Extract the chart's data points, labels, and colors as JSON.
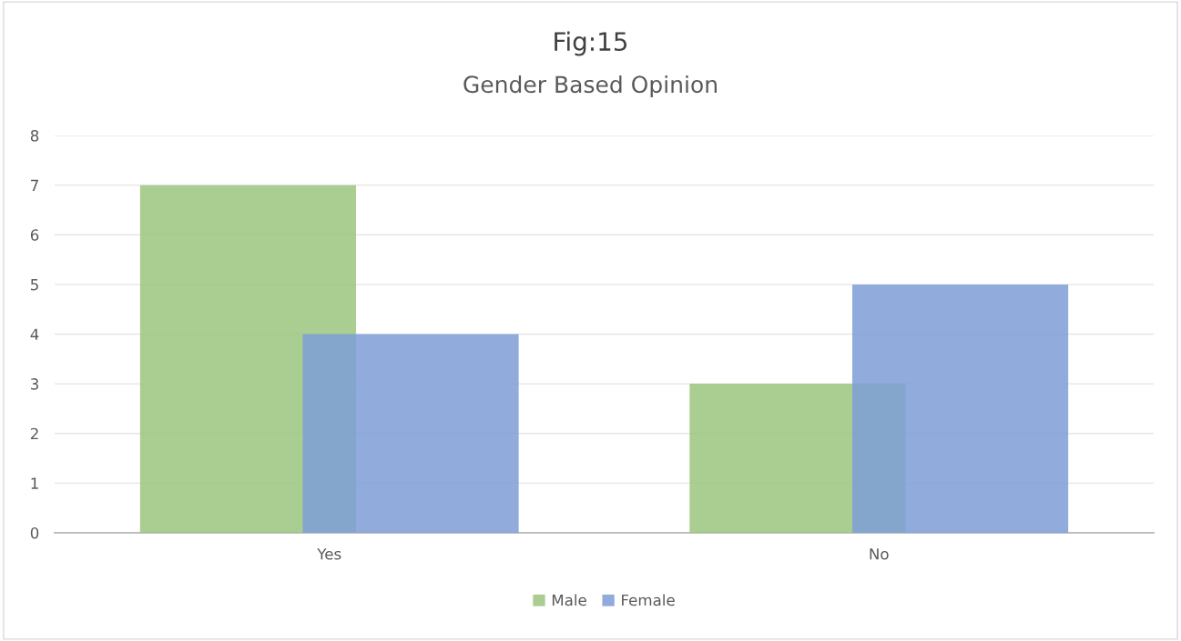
{
  "chart_data": {
    "type": "bar",
    "title": "Fig:15",
    "subtitle": "Gender Based Opinion",
    "categories": [
      "Yes",
      "No"
    ],
    "series": [
      {
        "name": "Male",
        "color": "#9bc57e",
        "values": [
          7,
          3
        ]
      },
      {
        "name": "Female",
        "color": "#7e9ed6",
        "values": [
          4,
          5
        ]
      }
    ],
    "ylim": [
      0,
      8
    ],
    "yticks": [
      0,
      1,
      2,
      3,
      4,
      5,
      6,
      7,
      8
    ],
    "grid": "y",
    "legend": "bottom"
  }
}
